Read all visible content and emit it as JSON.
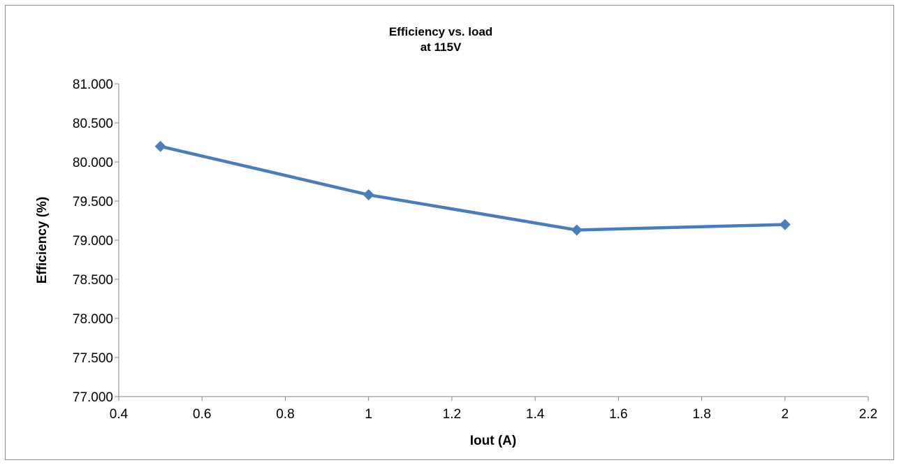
{
  "chart_data": {
    "type": "line",
    "title_lines": [
      "Efficiency vs. load",
      "at 115V"
    ],
    "xlabel": "Iout (A)",
    "ylabel": "Efficiency (%)",
    "xlim": [
      0.4,
      2.2
    ],
    "ylim": [
      77.0,
      81.0
    ],
    "x_ticks": [
      "0.4",
      "0.6",
      "0.8",
      "1",
      "1.2",
      "1.4",
      "1.6",
      "1.8",
      "2",
      "2.2"
    ],
    "y_ticks": [
      "77.000",
      "77.500",
      "78.000",
      "78.500",
      "79.000",
      "79.500",
      "80.000",
      "80.500",
      "81.000"
    ],
    "grid": false,
    "legend": "none",
    "series": [
      {
        "x": [
          0.5,
          1.0,
          1.5,
          2.0
        ],
        "y": [
          80.2,
          79.58,
          79.13,
          79.2
        ],
        "color": "#4a7ebb",
        "marker": "diamond"
      }
    ]
  }
}
